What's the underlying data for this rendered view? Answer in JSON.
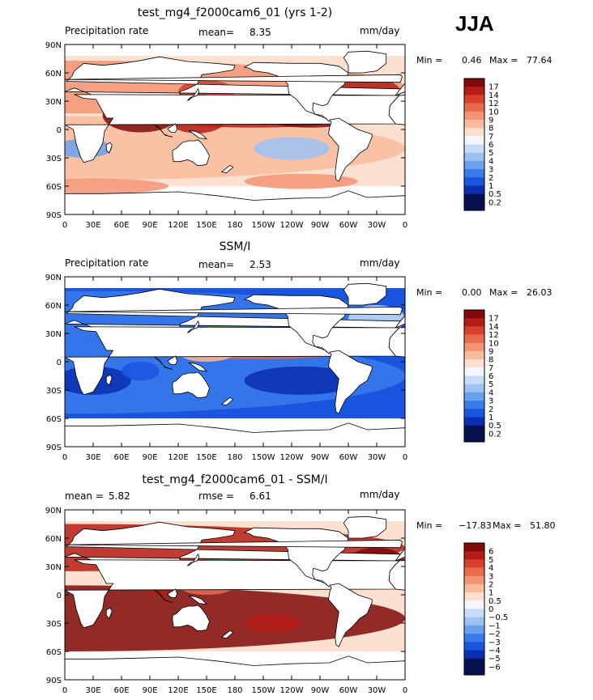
{
  "season": "JJA",
  "lat_labels": [
    "90N",
    "60N",
    "30N",
    "0",
    "30S",
    "60S",
    "90S"
  ],
  "lon_labels": [
    "0",
    "30E",
    "60E",
    "90E",
    "120E",
    "150E",
    "180",
    "150W",
    "120W",
    "90W",
    "60W",
    "30W",
    "0"
  ],
  "colors": {
    "abs_scale": [
      "#08104e",
      "#0b2fb0",
      "#1a55e0",
      "#3a7bea",
      "#6aa0ee",
      "#9bc2f3",
      "#c7dcf8",
      "#f3f7fd",
      "#fde0cf",
      "#f9bb9e",
      "#f39474",
      "#ea6a4c",
      "#d8402b",
      "#b51d16",
      "#7f0a0a"
    ],
    "diff_scale": [
      "#08104e",
      "#0b2fb0",
      "#1a55e0",
      "#3a7bea",
      "#6aa0ee",
      "#9bc2f3",
      "#c7dcf8",
      "#f3f7fd",
      "#fde0cf",
      "#f9bb9e",
      "#f39474",
      "#ea6a4c",
      "#d8402b",
      "#b51d16",
      "#7f0a0a"
    ]
  },
  "chart_data": [
    {
      "type": "heatmap",
      "title": "test_mg4_f2000cam6_01 (yrs 1-2)",
      "left_label": "Precipitation rate",
      "center_label": "mean=",
      "center_value": "8.35",
      "units": "mm/day",
      "min_label": "Min =",
      "min_value": "0.46",
      "max_label": "Max =",
      "max_value": "77.64",
      "colorbar_levels": [
        "17",
        "14",
        "12",
        "10",
        "9",
        "8",
        "7",
        "6",
        "5",
        "4",
        "3",
        "2",
        "1",
        "0.5",
        "0.2"
      ],
      "colormap": "abs"
    },
    {
      "type": "heatmap",
      "title": "SSM/I",
      "left_label": "Precipitation rate",
      "center_label": "mean=",
      "center_value": "2.53",
      "units": "mm/day",
      "min_label": "Min =",
      "min_value": "0.00",
      "max_label": "Max =",
      "max_value": "26.03",
      "colorbar_levels": [
        "17",
        "14",
        "12",
        "10",
        "9",
        "8",
        "7",
        "6",
        "5",
        "4",
        "3",
        "2",
        "1",
        "0.5",
        "0.2"
      ],
      "colormap": "abs"
    },
    {
      "type": "heatmap",
      "title": "test_mg4_f2000cam6_01 - SSM/I",
      "left_label": "mean =",
      "left_value": "5.82",
      "center_label": "rmse =",
      "center_value": "6.61",
      "units": "mm/day",
      "min_label": "Min =",
      "min_value": "−17.83",
      "max_label": "Max =",
      "max_value": "51.80",
      "colorbar_levels": [
        "6",
        "5",
        "4",
        "3",
        "2",
        "1",
        "0.5",
        "0",
        "−0.5",
        "−1",
        "−2",
        "−3",
        "−4",
        "−5",
        "−6"
      ],
      "colormap": "diff"
    }
  ]
}
